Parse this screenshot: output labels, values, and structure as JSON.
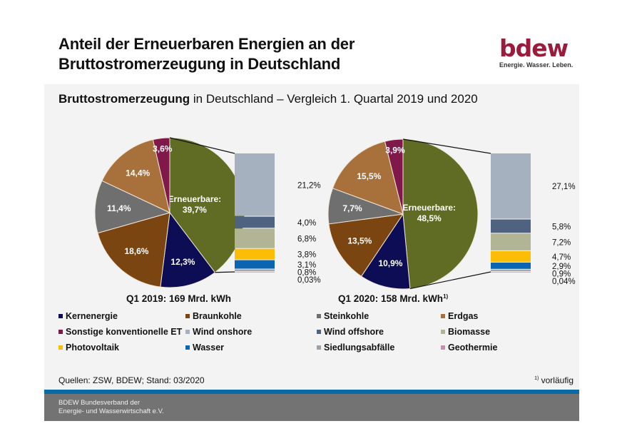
{
  "header": {
    "title_line1": "Anteil der Erneuerbaren Energien an der",
    "title_line2": "Bruttostromerzeugung in Deutschland",
    "logo_word": "bdew",
    "logo_tagline": "Energie. Wasser. Leben."
  },
  "subtitle": {
    "bold": "Bruttostromerzeugung",
    "rest": " in Deutschland – Vergleich 1. Quartal 2019 und 2020"
  },
  "colors": {
    "Kernenergie": "#0d0d55",
    "Braunkohle": "#7a4510",
    "Steinkohle": "#6f6f6f",
    "Erdgas": "#a8703a",
    "Sonstige konventionelle ET": "#80184a",
    "Erneuerbare": "#606b24",
    "Wind onshore": "#a6b1c0",
    "Wind offshore": "#4f6380",
    "Biomasse": "#b2b496",
    "Photovoltaik": "#fbbd05",
    "Wasser": "#0a64b0",
    "Siedlungsabfälle": "#a0a0a8",
    "Geothermie": "#c291b0"
  },
  "chart_data": [
    {
      "type": "pie",
      "title": "Q1 2019: 169 Mrd. kWh",
      "slices": [
        {
          "name": "Erneuerbare",
          "value": 39.7,
          "label": "Erneuerbare:\n39,7%"
        },
        {
          "name": "Kernenergie",
          "value": 12.3,
          "label": "12,3%"
        },
        {
          "name": "Braunkohle",
          "value": 18.6,
          "label": "18,6%"
        },
        {
          "name": "Steinkohle",
          "value": 11.4,
          "label": "11,4%"
        },
        {
          "name": "Erdgas",
          "value": 14.4,
          "label": "14,4%"
        },
        {
          "name": "Sonstige konventionelle ET",
          "value": 3.6,
          "label": "3,6%"
        }
      ],
      "breakdown": [
        {
          "name": "Wind onshore",
          "value": 21.2,
          "label": "21,2%"
        },
        {
          "name": "Wind offshore",
          "value": 4.0,
          "label": "4,0%"
        },
        {
          "name": "Biomasse",
          "value": 6.8,
          "label": "6,8%"
        },
        {
          "name": "Photovoltaik",
          "value": 3.8,
          "label": "3,8%"
        },
        {
          "name": "Wasser",
          "value": 3.1,
          "label": "3,1%"
        },
        {
          "name": "Siedlungsabfälle",
          "value": 0.8,
          "label": "0,8%"
        },
        {
          "name": "Geothermie",
          "value": 0.03,
          "label": "0,03%"
        }
      ]
    },
    {
      "type": "pie",
      "title": "Q1 2020: 158 Mrd. kWh",
      "title_footnote": "1)",
      "slices": [
        {
          "name": "Erneuerbare",
          "value": 48.5,
          "label": "Erneuerbare:\n48,5%"
        },
        {
          "name": "Kernenergie",
          "value": 10.9,
          "label": "10,9%"
        },
        {
          "name": "Braunkohle",
          "value": 13.5,
          "label": "13,5%"
        },
        {
          "name": "Steinkohle",
          "value": 7.7,
          "label": "7,7%"
        },
        {
          "name": "Erdgas",
          "value": 15.5,
          "label": "15,5%"
        },
        {
          "name": "Sonstige konventionelle ET",
          "value": 3.9,
          "label": "3,9%"
        }
      ],
      "breakdown": [
        {
          "name": "Wind onshore",
          "value": 27.1,
          "label": "27,1%"
        },
        {
          "name": "Wind offshore",
          "value": 5.8,
          "label": "5,8%"
        },
        {
          "name": "Biomasse",
          "value": 7.2,
          "label": "7,2%"
        },
        {
          "name": "Photovoltaik",
          "value": 4.7,
          "label": "4,7%"
        },
        {
          "name": "Wasser",
          "value": 2.9,
          "label": "2,9%"
        },
        {
          "name": "Siedlungsabfälle",
          "value": 0.9,
          "label": "0,9%"
        },
        {
          "name": "Geothermie",
          "value": 0.04,
          "label": "0,04%"
        }
      ]
    }
  ],
  "legend": [
    "Kernenergie",
    "Braunkohle",
    "Steinkohle",
    "Erdgas",
    "Sonstige konventionelle ET",
    "Wind onshore",
    "Wind offshore",
    "Biomasse",
    "Photovoltaik",
    "Wasser",
    "Siedlungsabfälle",
    "Geothermie"
  ],
  "source": "Quellen: ZSW, BDEW; Stand: 03/2020",
  "footnote": {
    "mark": "1)",
    "text": " vorläufig"
  },
  "footer": {
    "line1": "BDEW Bundesverband der",
    "line2": "Energie- und Wasserwirtschaft e.V."
  }
}
